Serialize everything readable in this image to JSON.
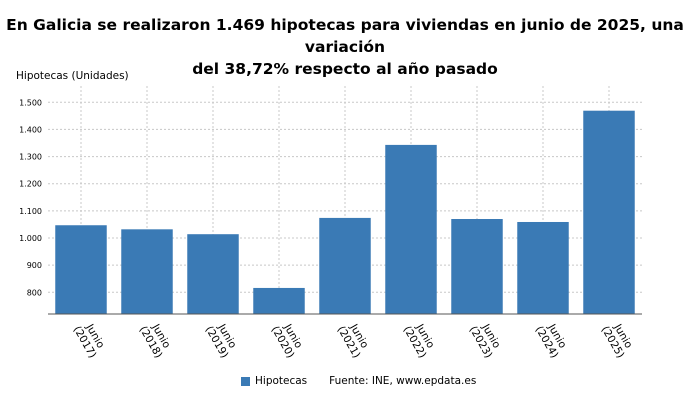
{
  "title_lines": [
    "En Galicia se realizaron 1.469 hipotecas para viviendas en junio de 2025, una variación",
    "del 38,72% respecto al año pasado"
  ],
  "colors": {
    "bar": "#3a7ab5",
    "grid": "#c8c8c8",
    "axis": "#555555"
  },
  "legend": {
    "label": "Hipotecas"
  },
  "source": "Fuente: INE, www.epdata.es",
  "chart_data": {
    "type": "bar",
    "ylabel": "Hipotecas (Unidades)",
    "xlabel": "",
    "categories": [
      [
        "Junio",
        "(2017)"
      ],
      [
        "Junio",
        "(2018)"
      ],
      [
        "Junio",
        "(2019)"
      ],
      [
        "Junio",
        "(2020)"
      ],
      [
        "Junio",
        "(2021)"
      ],
      [
        "Junio",
        "(2022)"
      ],
      [
        "Junio",
        "(2023)"
      ],
      [
        "Junio",
        "(2024)"
      ],
      [
        "Junio",
        "(2025)"
      ]
    ],
    "series": [
      {
        "name": "Hipotecas",
        "values": [
          1047,
          1032,
          1014,
          816,
          1074,
          1343,
          1070,
          1059,
          1469
        ]
      }
    ],
    "ylim": [
      720,
      1560
    ],
    "yticks": [
      800,
      900,
      1000,
      1100,
      1200,
      1300,
      1400,
      1500
    ],
    "ytick_labels": [
      "800",
      "900",
      "1.000",
      "1.100",
      "1.200",
      "1.300",
      "1.400",
      "1.500"
    ],
    "grid": true,
    "legend_position": "bottom"
  }
}
